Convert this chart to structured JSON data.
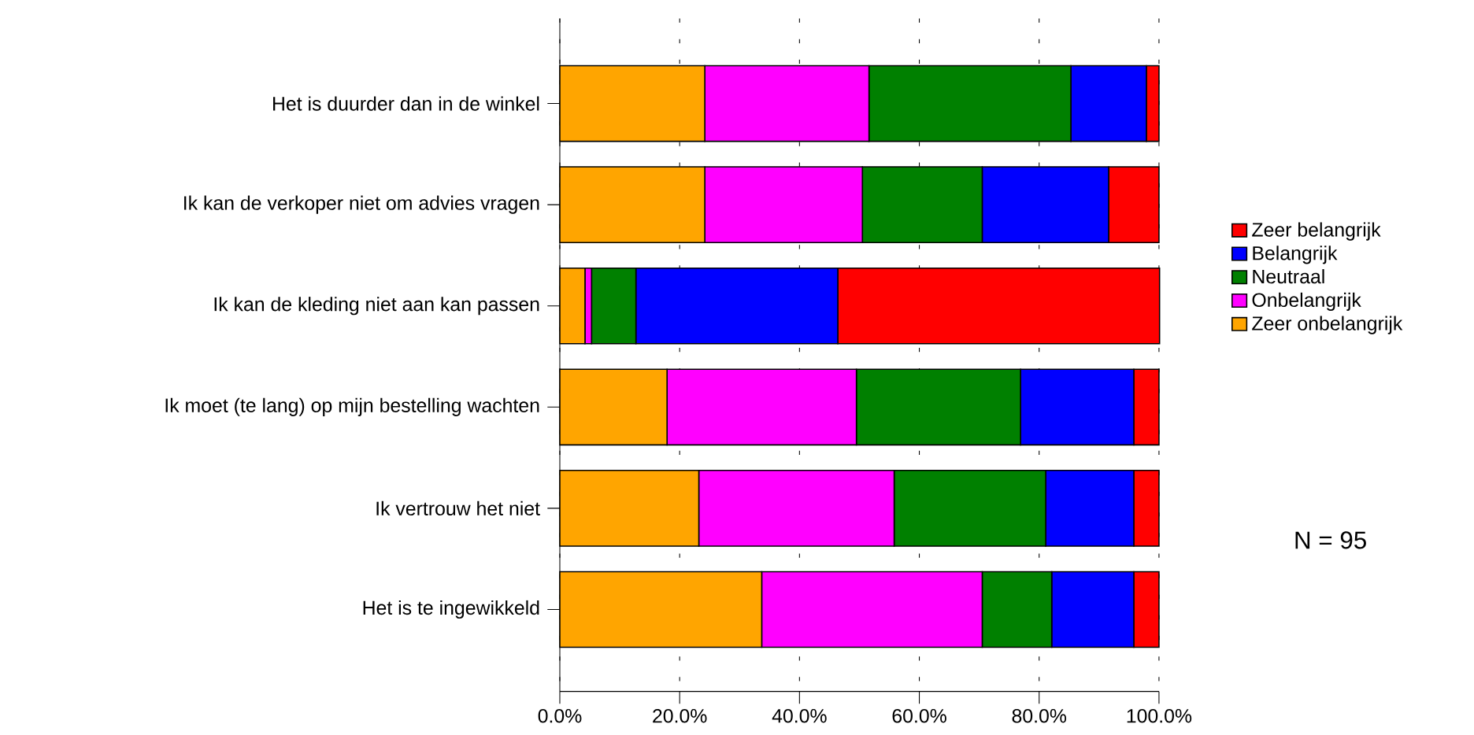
{
  "chart_data": {
    "type": "bar",
    "orientation": "horizontal",
    "stacked": true,
    "categories": [
      "Het is duurder dan in de winkel",
      "Ik kan de verkoper niet om advies vragen",
      "Ik kan de kleding niet aan kan passen",
      "Ik moet (te lang) op mijn bestelling wachten",
      "Ik vertrouw het niet",
      "Het is te ingewikkeld"
    ],
    "series": [
      {
        "name": "Zeer onbelangrijk",
        "color": "#ffa500",
        "values": [
          24.2,
          24.2,
          4.2,
          17.9,
          23.2,
          33.7
        ]
      },
      {
        "name": "Onbelangrijk",
        "color": "#ff00ff",
        "values": [
          27.4,
          26.3,
          1.1,
          31.6,
          32.6,
          36.8
        ]
      },
      {
        "name": "Neutraal",
        "color": "#008000",
        "values": [
          33.7,
          20.0,
          7.4,
          27.4,
          25.3,
          11.6
        ]
      },
      {
        "name": "Belangrijk",
        "color": "#0000ff",
        "values": [
          12.6,
          21.1,
          33.7,
          18.9,
          14.7,
          13.7
        ]
      },
      {
        "name": "Zeer belangrijk",
        "color": "#ff0000",
        "values": [
          2.1,
          8.4,
          53.7,
          4.2,
          4.2,
          4.2
        ]
      }
    ],
    "xlim": [
      0,
      100
    ],
    "xticks": [
      {
        "value": 0,
        "label": "0.0%"
      },
      {
        "value": 20,
        "label": "20.0%"
      },
      {
        "value": 40,
        "label": "40.0%"
      },
      {
        "value": 60,
        "label": "60.0%"
      },
      {
        "value": 80,
        "label": "80.0%"
      },
      {
        "value": 100,
        "label": "100.0%"
      }
    ],
    "grid": "x",
    "legend": "right",
    "annotations": [
      "N = 95"
    ]
  }
}
